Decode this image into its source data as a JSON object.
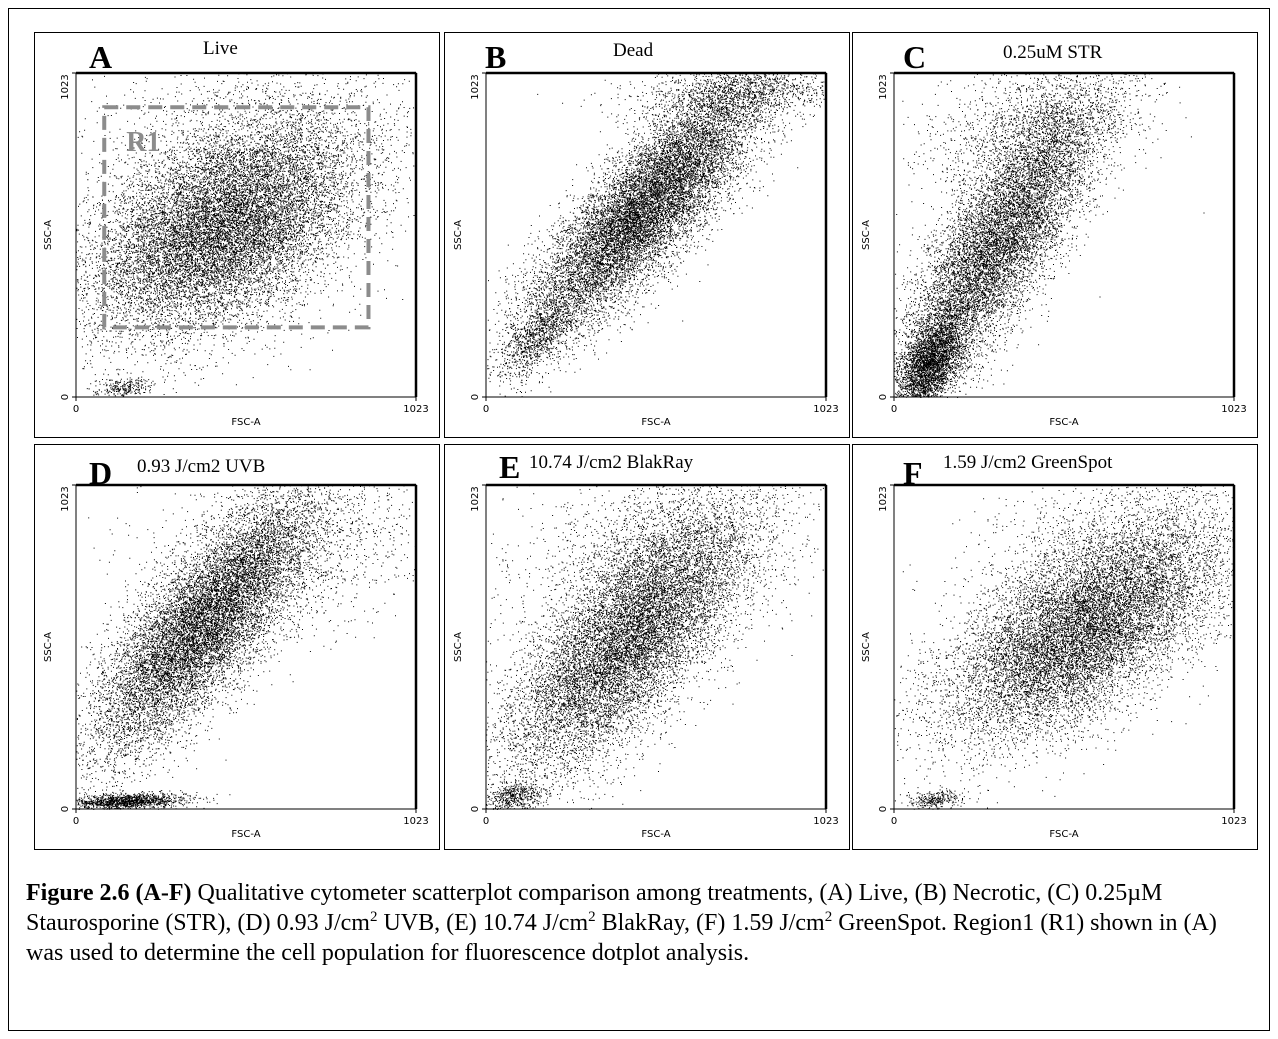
{
  "chart_data": [
    {
      "type": "scatter",
      "panel": "A",
      "title": "Live",
      "xlabel": "FSC-A",
      "ylabel": "SSC-A",
      "x_ticks": [
        "0",
        "1023"
      ],
      "y_ticks": [
        "0",
        "1023"
      ],
      "xlim": [
        0,
        1023
      ],
      "ylim": [
        0,
        1023
      ],
      "clusters": [
        {
          "cx": 440,
          "cy": 530,
          "sx": 200,
          "sy": 165,
          "rho": 0.45,
          "n": 14000
        },
        {
          "cx": 140,
          "cy": 30,
          "sx": 45,
          "sy": 15,
          "rho": 0.2,
          "n": 250
        },
        {
          "cx": 560,
          "cy": 820,
          "sx": 260,
          "sy": 130,
          "rho": 0.1,
          "n": 1500
        }
      ],
      "gate": {
        "label": "R1",
        "x_range": [
          85,
          880
        ],
        "y_range": [
          220,
          915
        ]
      }
    },
    {
      "type": "scatter",
      "panel": "B",
      "title": "Dead",
      "xlabel": "FSC-A",
      "ylabel": "SSC-A",
      "x_ticks": [
        "0",
        "1023"
      ],
      "y_ticks": [
        "0",
        "1023"
      ],
      "xlim": [
        0,
        1023
      ],
      "ylim": [
        0,
        1023
      ],
      "clusters": [
        {
          "cx": 480,
          "cy": 600,
          "sx": 175,
          "sy": 200,
          "rho": 0.84,
          "n": 13000
        },
        {
          "cx": 160,
          "cy": 200,
          "sx": 60,
          "sy": 70,
          "rho": 0.7,
          "n": 900
        },
        {
          "cx": 760,
          "cy": 960,
          "sx": 160,
          "sy": 45,
          "rho": 0.3,
          "n": 1200
        }
      ]
    },
    {
      "type": "scatter",
      "panel": "C",
      "title": "0.25uM STR",
      "xlabel": "FSC-A",
      "ylabel": "SSC-A",
      "x_ticks": [
        "0",
        "1023"
      ],
      "y_ticks": [
        "0",
        "1023"
      ],
      "xlim": [
        0,
        1023
      ],
      "ylim": [
        0,
        1023
      ],
      "clusters": [
        {
          "cx": 320,
          "cy": 500,
          "sx": 150,
          "sy": 230,
          "rho": 0.8,
          "n": 10000
        },
        {
          "cx": 110,
          "cy": 110,
          "sx": 50,
          "sy": 80,
          "rho": 0.5,
          "n": 3500
        },
        {
          "cx": 420,
          "cy": 860,
          "sx": 170,
          "sy": 110,
          "rho": 0.4,
          "n": 1500
        }
      ]
    },
    {
      "type": "scatter",
      "panel": "D",
      "title": "0.93 J/cm2 UVB",
      "xlabel": "FSC-A",
      "ylabel": "SSC-A",
      "x_ticks": [
        "0",
        "1023"
      ],
      "y_ticks": [
        "0",
        "1023"
      ],
      "xlim": [
        0,
        1023
      ],
      "ylim": [
        0,
        1023
      ],
      "clusters": [
        {
          "cx": 380,
          "cy": 580,
          "sx": 170,
          "sy": 210,
          "rho": 0.8,
          "n": 12000
        },
        {
          "cx": 150,
          "cy": 25,
          "sx": 90,
          "sy": 12,
          "rho": 0.25,
          "n": 1400
        },
        {
          "cx": 660,
          "cy": 820,
          "sx": 230,
          "sy": 150,
          "rho": 0.3,
          "n": 1500
        }
      ]
    },
    {
      "type": "scatter",
      "panel": "E",
      "title": "10.74 J/cm2 BlakRay",
      "xlabel": "FSC-A",
      "ylabel": "SSC-A",
      "x_ticks": [
        "0",
        "1023"
      ],
      "y_ticks": [
        "0",
        "1023"
      ],
      "xlim": [
        0,
        1023
      ],
      "ylim": [
        0,
        1023
      ],
      "clusters": [
        {
          "cx": 430,
          "cy": 540,
          "sx": 180,
          "sy": 210,
          "rho": 0.72,
          "n": 12000
        },
        {
          "cx": 90,
          "cy": 40,
          "sx": 40,
          "sy": 25,
          "rho": 0.2,
          "n": 500
        },
        {
          "cx": 520,
          "cy": 830,
          "sx": 220,
          "sy": 140,
          "rho": 0.3,
          "n": 1500
        }
      ]
    },
    {
      "type": "scatter",
      "panel": "F",
      "title": "1.59 J/cm2 GreenSpot",
      "xlabel": "FSC-A",
      "ylabel": "SSC-A",
      "x_ticks": [
        "0",
        "1023"
      ],
      "y_ticks": [
        "0",
        "1023"
      ],
      "xlim": [
        0,
        1023
      ],
      "ylim": [
        0,
        1023
      ],
      "clusters": [
        {
          "cx": 560,
          "cy": 560,
          "sx": 200,
          "sy": 165,
          "rho": 0.6,
          "n": 12000
        },
        {
          "cx": 120,
          "cy": 30,
          "sx": 40,
          "sy": 15,
          "rho": 0.2,
          "n": 300
        },
        {
          "cx": 700,
          "cy": 820,
          "sx": 220,
          "sy": 140,
          "rho": 0.3,
          "n": 1500
        }
      ]
    }
  ],
  "caption": {
    "label": "Figure 2.6 (A-F)",
    "seg1": " Qualitative cytometer scatterplot comparison among treatments, (A) Live, (B) Necrotic, (C) 0.25µM Staurosporine (STR), (D) 0.93 J/cm",
    "sup1": "2",
    "seg2": " UVB, (E) 10.74 J/cm",
    "sup2": "2",
    "seg3": " BlakRay, (F) 1.59 J/cm",
    "sup3": "2",
    "seg4": " GreenSpot. Region1 (R1) shown in (A) was used to determine the cell population for fluorescence dotplot analysis."
  },
  "colors": {
    "dot": "#000000",
    "gate": "#8c8c8c",
    "border": "#000000"
  }
}
